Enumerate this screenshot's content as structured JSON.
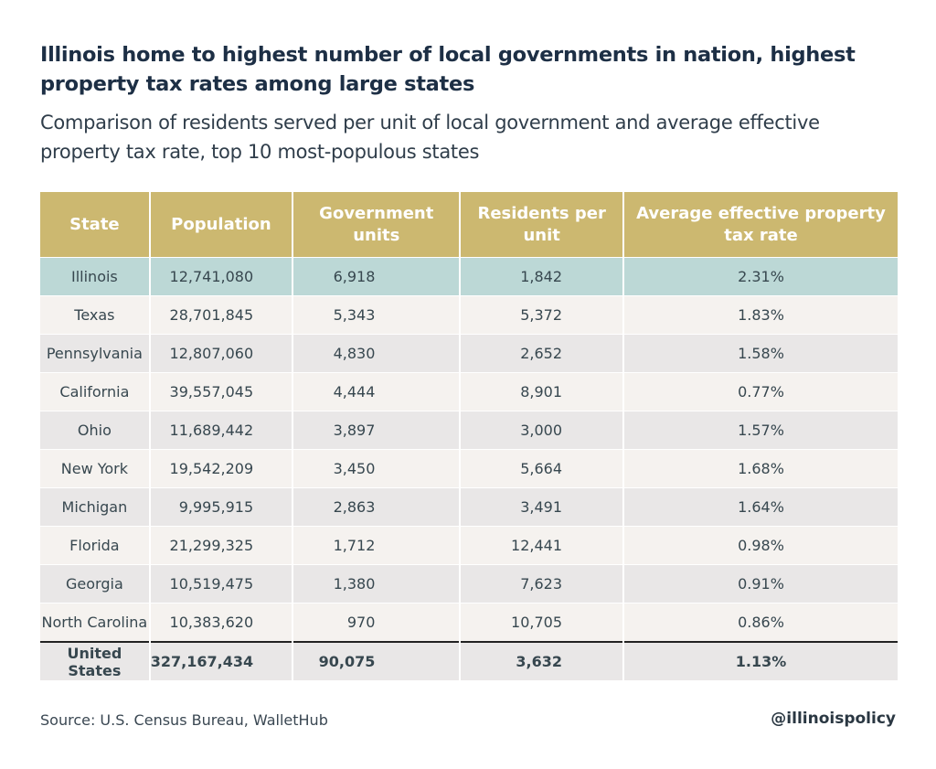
{
  "title": "Illinois home to highest number of local governments in nation, highest property tax rates among large states",
  "subtitle": "Comparison of residents served per unit of local government and average effective property tax rate, top 10 most-populous states",
  "colors": {
    "header": "#ccb870",
    "highlight": "#bcd8d6",
    "row_light": "#f5f2ef",
    "row_dark": "#e9e7e7"
  },
  "chart_data": {
    "type": "table",
    "columns": [
      "State",
      "Population",
      "Government units",
      "Residents per unit",
      "Average effective property tax rate"
    ],
    "rows": [
      [
        "Illinois",
        "12,741,080",
        "6,918",
        "1,842",
        "2.31%"
      ],
      [
        "Texas",
        "28,701,845",
        "5,343",
        "5,372",
        "1.83%"
      ],
      [
        "Pennsylvania",
        "12,807,060",
        "4,830",
        "2,652",
        "1.58%"
      ],
      [
        "California",
        "39,557,045",
        "4,444",
        "8,901",
        "0.77%"
      ],
      [
        "Ohio",
        "11,689,442",
        "3,897",
        "3,000",
        "1.57%"
      ],
      [
        "New York",
        "19,542,209",
        "3,450",
        "5,664",
        "1.68%"
      ],
      [
        "Michigan",
        "9,995,915",
        "2,863",
        "3,491",
        "1.64%"
      ],
      [
        "Florida",
        "21,299,325",
        "1,712",
        "12,441",
        "0.98%"
      ],
      [
        "Georgia",
        "10,519,475",
        "1,380",
        "7,623",
        "0.91%"
      ],
      [
        "North Carolina",
        "10,383,620",
        "970",
        "10,705",
        "0.86%"
      ]
    ],
    "total": [
      "United States",
      "327,167,434",
      "90,075",
      "3,632",
      "1.13%"
    ],
    "highlighted_row": "Illinois"
  },
  "source": "Source: U.S. Census Bureau, WalletHub",
  "handle": "@illinoispolicy"
}
